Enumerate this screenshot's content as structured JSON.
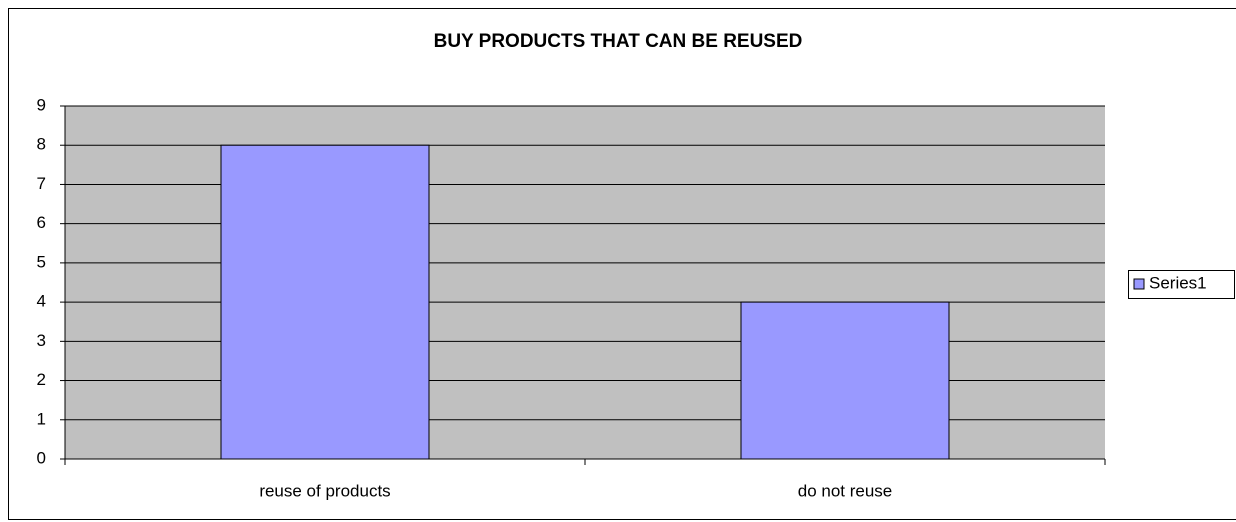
{
  "chart_data": {
    "type": "bar",
    "title": "BUY PRODUCTS THAT CAN BE REUSED",
    "categories": [
      "reuse of products",
      "do not reuse"
    ],
    "series": [
      {
        "name": "Series1",
        "color": "#9999ff",
        "values": [
          8,
          4
        ]
      }
    ],
    "ylim": [
      0,
      9
    ],
    "yticks": [
      0,
      1,
      2,
      3,
      4,
      5,
      6,
      7,
      8,
      9
    ],
    "grid": true,
    "legend": "right"
  }
}
